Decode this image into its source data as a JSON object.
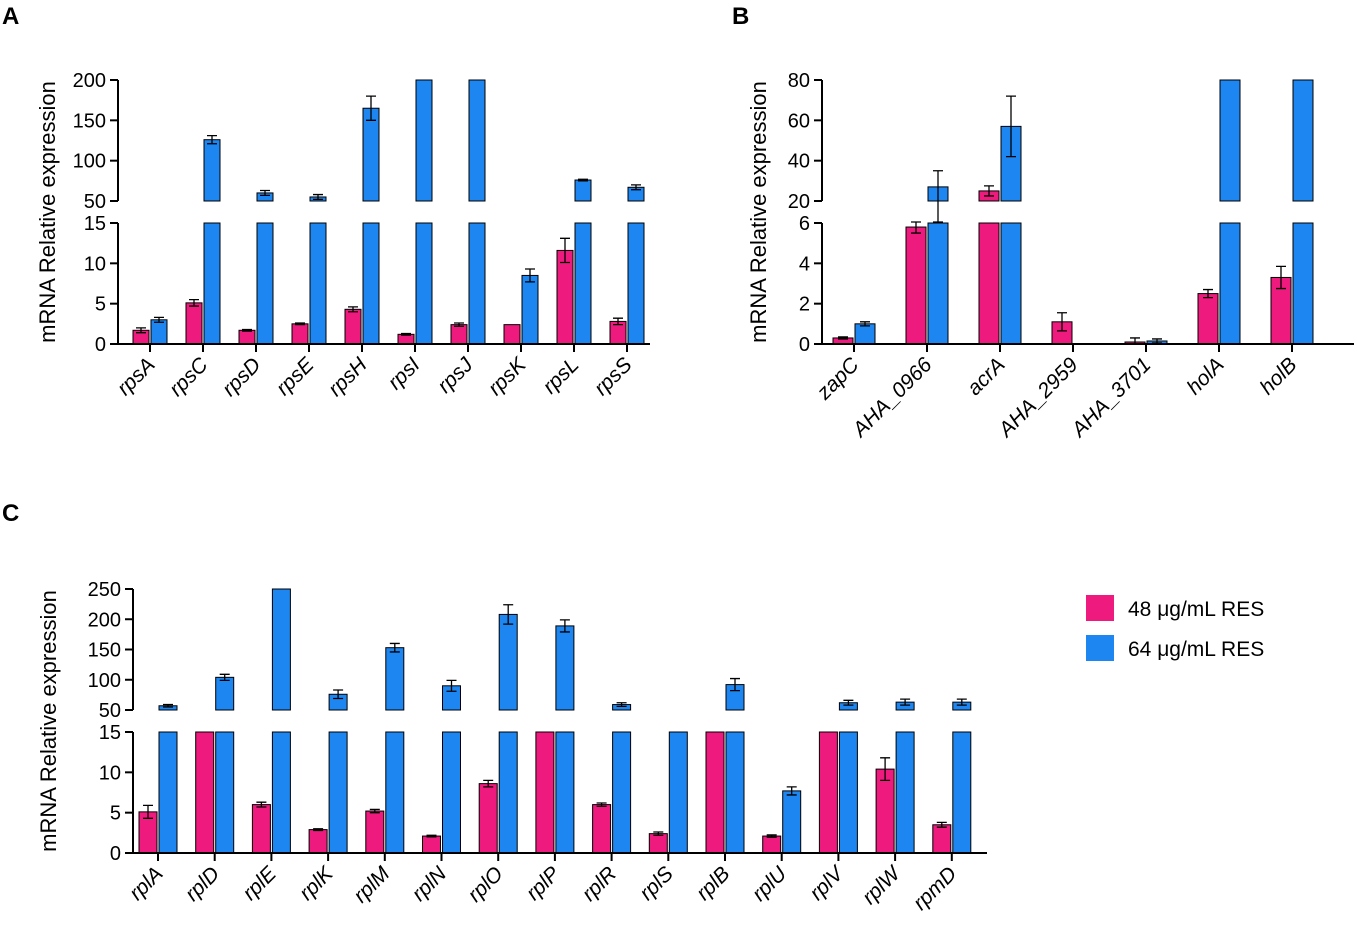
{
  "colors": {
    "series_48": "#ee1a7d",
    "series_64": "#1e86f0"
  },
  "legend": {
    "items": [
      {
        "label": "48 μg/mL RES",
        "color": "#ee1a7d"
      },
      {
        "label": "64 μg/mL RES",
        "color": "#1e86f0"
      }
    ]
  },
  "chart_data": [
    {
      "panel": "A",
      "type": "bar",
      "ylabel": "mRNA Relative expression",
      "segments": [
        {
          "ylim": [
            0,
            15
          ],
          "ticks": [
            0,
            5,
            10,
            15
          ]
        },
        {
          "ylim": [
            50,
            200
          ],
          "ticks": [
            50,
            100,
            150,
            200
          ]
        }
      ],
      "categories": [
        "rpsA",
        "rpsC",
        "rpsD",
        "rpsE",
        "rpsH",
        "rpsI",
        "rpsJ",
        "rpsK",
        "rpsL",
        "rpsS"
      ],
      "series": [
        {
          "name": "48 μg/mL RES",
          "values": [
            1.7,
            5.1,
            1.7,
            2.5,
            4.3,
            1.2,
            2.4,
            2.4,
            11.6,
            2.8
          ],
          "errors": [
            0.3,
            0.4,
            0.1,
            0.1,
            0.3,
            0.1,
            0.2,
            0.0,
            1.5,
            0.4
          ]
        },
        {
          "name": "64 μg/mL RES",
          "values": [
            3.0,
            126,
            60,
            55,
            165,
            200,
            200,
            8.5,
            76,
            67
          ],
          "errors": [
            0.3,
            5,
            3,
            3,
            15,
            0,
            0,
            0.8,
            1,
            3
          ]
        }
      ]
    },
    {
      "panel": "B",
      "type": "bar",
      "ylabel": "mRNA Relative expression",
      "segments": [
        {
          "ylim": [
            0,
            6
          ],
          "ticks": [
            0,
            2,
            4,
            6
          ]
        },
        {
          "ylim": [
            20,
            80
          ],
          "ticks": [
            20,
            40,
            60,
            80
          ]
        }
      ],
      "categories": [
        "zapC",
        "AHA_0966",
        "acrA",
        "AHA_2959",
        "AHA_3701",
        "holA",
        "holB"
      ],
      "series": [
        {
          "name": "48 μg/mL RES",
          "values": [
            0.3,
            5.8,
            25,
            1.1,
            0.1,
            2.5,
            3.3
          ],
          "errors": [
            0.05,
            0.3,
            2.5,
            0.45,
            0.2,
            0.2,
            0.55
          ]
        },
        {
          "name": "64 μg/mL RES",
          "values": [
            1.0,
            27,
            57,
            0,
            0.15,
            80,
            80
          ],
          "errors": [
            0.1,
            8,
            15,
            0,
            0.1,
            0,
            0
          ]
        }
      ]
    },
    {
      "panel": "C",
      "type": "bar",
      "ylabel": "mRNA Relative expression",
      "segments": [
        {
          "ylim": [
            0,
            15
          ],
          "ticks": [
            0,
            5,
            10,
            15
          ]
        },
        {
          "ylim": [
            50,
            250
          ],
          "ticks": [
            50,
            100,
            150,
            200,
            250
          ]
        }
      ],
      "categories": [
        "rplA",
        "rplD",
        "rplE",
        "rplK",
        "rplM",
        "rplN",
        "rplO",
        "rplP",
        "rplR",
        "rplS",
        "rplB",
        "rplU",
        "rplV",
        "rplW",
        "rpmD"
      ],
      "series": [
        {
          "name": "48 μg/mL RES",
          "values": [
            5.1,
            16,
            6.0,
            2.9,
            5.2,
            2.1,
            8.6,
            16,
            6.0,
            2.4,
            16,
            2.1,
            16,
            10.4,
            3.5
          ],
          "errors": [
            0.8,
            0,
            0.3,
            0.1,
            0.2,
            0.1,
            0.4,
            2.0,
            0.2,
            0.2,
            0,
            0.15,
            1.0,
            1.4,
            0.3
          ]
        },
        {
          "name": "64 μg/mL RES",
          "values": [
            57,
            104,
            250,
            76,
            153,
            90,
            208,
            189,
            59,
            15.5,
            92,
            7.7,
            62,
            63,
            63
          ],
          "errors": [
            2,
            5,
            0,
            7,
            7,
            9,
            16,
            10,
            3,
            0.3,
            10,
            0.5,
            4,
            5,
            5
          ]
        }
      ]
    }
  ]
}
